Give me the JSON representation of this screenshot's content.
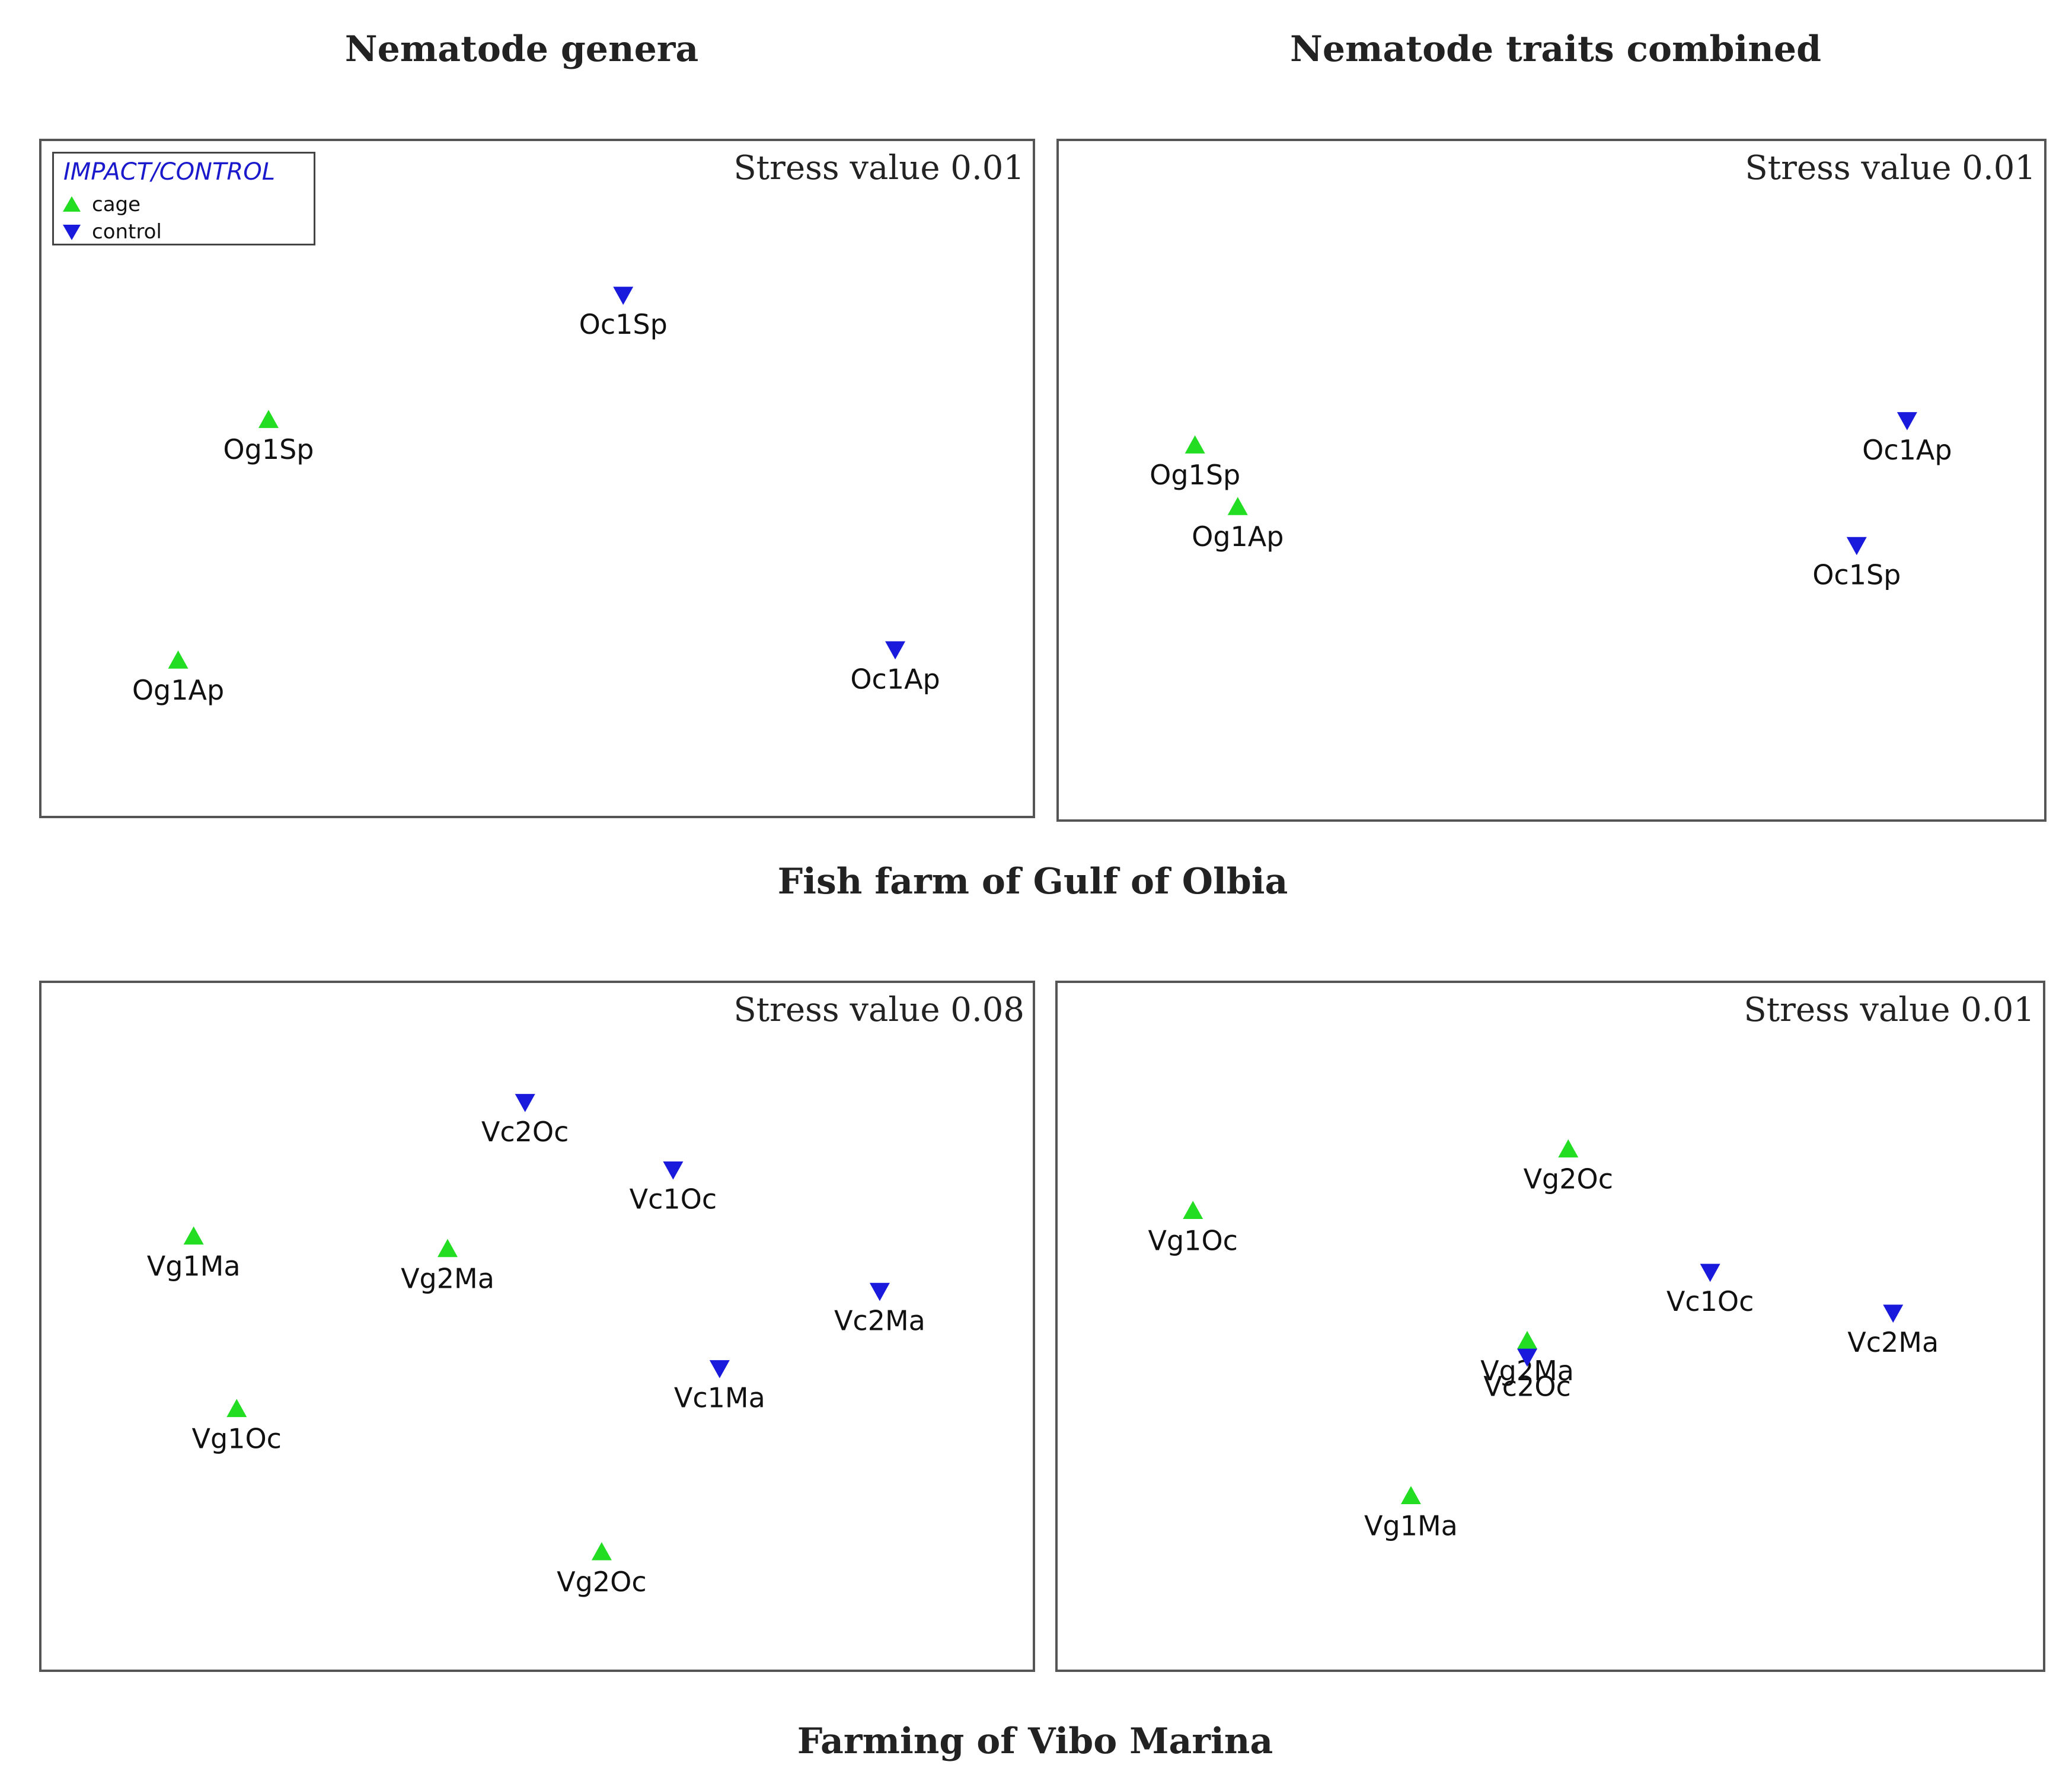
{
  "headings": {
    "left_column": "Nematode genera",
    "right_column": "Nematode traits combined",
    "row1_caption": "Fish farm of Gulf of Olbia",
    "row2_caption": "Farming of Vibo Marina"
  },
  "legend": {
    "title": "IMPACT/CONTROL",
    "items": [
      {
        "label": "cage",
        "symbol": "triangle-up",
        "color": "#22dd22"
      },
      {
        "label": "control",
        "symbol": "triangle-down",
        "color": "#1a1add"
      }
    ]
  },
  "colors": {
    "cage": "#22dd22",
    "control": "#1a1add",
    "frame": "#555555"
  },
  "chart_data": [
    {
      "type": "scatter",
      "title": "Nematode genera",
      "site": "Fish farm of Gulf of Olbia",
      "stress": "Stress value 0.01",
      "xlim": [
        0,
        100
      ],
      "ylim": [
        0,
        100
      ],
      "points": [
        {
          "label": "Oc1Sp",
          "group": "control",
          "x": 60.0,
          "y": 84.5
        },
        {
          "label": "Og1Sp",
          "group": "cage",
          "x": 18.8,
          "y": 61.0
        },
        {
          "label": "Og1Ap",
          "group": "cage",
          "x": 8.3,
          "y": 15.8
        },
        {
          "label": "Oc1Ap",
          "group": "control",
          "x": 91.6,
          "y": 17.9
        }
      ]
    },
    {
      "type": "scatter",
      "title": "Nematode traits combined",
      "site": "Fish farm of Gulf of Olbia",
      "stress": "Stress value 0.01",
      "xlim": [
        0,
        100
      ],
      "ylim": [
        0,
        100
      ],
      "points": [
        {
          "label": "Og1Sp",
          "group": "cage",
          "x": 8.3,
          "y": 56.5
        },
        {
          "label": "Og1Ap",
          "group": "cage",
          "x": 13.3,
          "y": 45.0
        },
        {
          "label": "Oc1Ap",
          "group": "control",
          "x": 91.6,
          "y": 61.2
        },
        {
          "label": "Oc1Sp",
          "group": "control",
          "x": 85.7,
          "y": 37.9
        }
      ]
    },
    {
      "type": "scatter",
      "title": "Nematode genera",
      "site": "Farming of Vibo Marina",
      "stress": "Stress value 0.08",
      "xlim": [
        0,
        100
      ],
      "ylim": [
        0,
        100
      ],
      "points": [
        {
          "label": "Vc2Oc",
          "group": "control",
          "x": 48.6,
          "y": 91.2
        },
        {
          "label": "Vc1Oc",
          "group": "control",
          "x": 65.8,
          "y": 78.8
        },
        {
          "label": "Vg1Ma",
          "group": "cage",
          "x": 10.1,
          "y": 66.5
        },
        {
          "label": "Vg2Ma",
          "group": "cage",
          "x": 39.6,
          "y": 64.2
        },
        {
          "label": "Vc2Ma",
          "group": "control",
          "x": 89.8,
          "y": 56.5
        },
        {
          "label": "Vc1Ma",
          "group": "control",
          "x": 71.2,
          "y": 42.3
        },
        {
          "label": "Vg1Oc",
          "group": "cage",
          "x": 15.1,
          "y": 34.8
        },
        {
          "label": "Vg2Oc",
          "group": "cage",
          "x": 57.5,
          "y": 8.5
        }
      ]
    },
    {
      "type": "scatter",
      "title": "Nematode traits combined",
      "site": "Farming of Vibo Marina",
      "stress": "Stress value 0.01",
      "xlim": [
        0,
        100
      ],
      "ylim": [
        0,
        100
      ],
      "points": [
        {
          "label": "Vg2Oc",
          "group": "cage",
          "x": 52.1,
          "y": 82.5
        },
        {
          "label": "Vg1Oc",
          "group": "cage",
          "x": 8.2,
          "y": 71.2
        },
        {
          "label": "Vc1Oc",
          "group": "control",
          "x": 68.7,
          "y": 60.0
        },
        {
          "label": "Vc2Ma",
          "group": "control",
          "x": 90.1,
          "y": 52.5
        },
        {
          "label": "Vg2Ma",
          "group": "cage",
          "x": 47.3,
          "y": 47.3
        },
        {
          "label": "Vc2Oc",
          "group": "control",
          "x": 47.3,
          "y": 44.4
        },
        {
          "label": "Vg1Ma",
          "group": "cage",
          "x": 33.7,
          "y": 18.8
        }
      ]
    }
  ]
}
